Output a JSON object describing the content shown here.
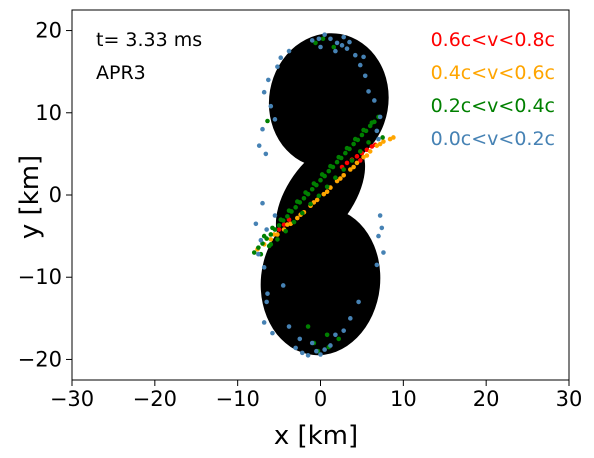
{
  "chart_data": {
    "type": "scatter",
    "annotations": {
      "time": "t= 3.33 ms",
      "eos": "APR3"
    },
    "xlabel": "x [km]",
    "ylabel": "y [km]",
    "xlim": [
      -30,
      30
    ],
    "ylim": [
      -22.5,
      22.5
    ],
    "x_ticks": [
      -30,
      -20,
      -10,
      0,
      10,
      20,
      30
    ],
    "x_tick_labels": [
      "−30",
      "−20",
      "−10",
      "0",
      "10",
      "20",
      "30"
    ],
    "y_ticks": [
      -20,
      -10,
      0,
      10,
      20
    ],
    "y_tick_labels": [
      "−20",
      "−10",
      "0",
      "10",
      "20"
    ],
    "grid": false,
    "legend_position": "top-right",
    "legend": [
      {
        "label": "0.6c<v<0.8c",
        "color": "#ff0000"
      },
      {
        "label": "0.4c<v<0.6c",
        "color": "#ffa500"
      },
      {
        "label": "0.2c<v<0.4c",
        "color": "#008000"
      },
      {
        "label": "0.0c<v<0.2c",
        "color": "#4682b4"
      }
    ],
    "body": {
      "color": "#000000",
      "upper_lobe": {
        "center": [
          1.0,
          11.5
        ],
        "semi_axis_x": 7.2,
        "semi_axis_y": 8.2,
        "rotation_deg": 10
      },
      "lower_lobe": {
        "center": [
          0.0,
          -10.5
        ],
        "semi_axis_x": 7.2,
        "semi_axis_y": 9.0,
        "rotation_deg": 6
      },
      "waist": {
        "center": [
          0.0,
          0.0
        ],
        "semi_axis_x": 4.0,
        "semi_axis_y": 7.5,
        "rotation_deg": 35
      }
    },
    "series": [
      {
        "name": "0.0c<v<0.2c",
        "color": "#4682b4",
        "x": [
          0.5,
          1.2,
          2.0,
          2.8,
          3.5,
          -0.2,
          -1.0,
          4.2,
          1.8,
          2.6,
          3.2,
          0.0,
          -6.3,
          -6.8,
          -5.2,
          -6.0,
          -5.5,
          -4.8,
          -3.8,
          -7.4,
          -7.0,
          -6.6,
          5.4,
          5.8,
          6.5,
          6.8,
          4.8,
          7.2,
          7.0,
          5.2,
          -7.2,
          -7.5,
          -6.8,
          -7.8,
          -6.5,
          -7.0,
          7.0,
          7.4,
          6.8,
          7.6,
          7.2,
          -6.5,
          -6.8,
          -5.8,
          -6.4,
          -3.0,
          -2.2,
          -1.5,
          -0.5,
          0.5,
          1.2,
          -1.0,
          0.0,
          -2.5,
          1.8,
          -3.8,
          3.6,
          4.6,
          2.8,
          -4.5,
          -5.5
        ],
        "y": [
          19.5,
          19.0,
          18.5,
          19.2,
          18.6,
          19.0,
          18.8,
          17.0,
          17.5,
          18.2,
          17.8,
          18.0,
          14.0,
          12.5,
          15.6,
          10.8,
          9.2,
          16.7,
          17.5,
          6.0,
          8.0,
          5.0,
          14.5,
          12.6,
          11.5,
          7.8,
          15.8,
          9.5,
          6.8,
          16.8,
          -5.5,
          -7.2,
          -8.8,
          -3.5,
          -4.2,
          -1.0,
          -5.0,
          -4.0,
          -8.5,
          -7.0,
          -2.5,
          -13.0,
          -15.5,
          -16.8,
          -12.0,
          -18.6,
          -19.2,
          -19.5,
          -19.0,
          -18.8,
          -18.3,
          -18.0,
          -19.4,
          -17.5,
          -17.0,
          -16.0,
          -15.0,
          -13.0,
          -16.5,
          -11.0,
          -2.5
        ]
      },
      {
        "name": "0.2c<v<0.4c",
        "color": "#008000",
        "x": [
          -8.0,
          -7.5,
          -7.0,
          -6.5,
          -6.0,
          -5.5,
          -5.0,
          -4.5,
          -4.0,
          -3.5,
          -3.0,
          -2.5,
          -2.0,
          -1.5,
          -1.0,
          -0.5,
          0.0,
          0.5,
          1.0,
          1.5,
          2.0,
          2.5,
          3.0,
          3.5,
          4.0,
          4.5,
          5.0,
          5.5,
          6.0,
          6.5,
          7.0,
          7.5,
          -6.8,
          -5.8,
          -4.8,
          -3.8,
          -2.8,
          -1.8,
          -0.8,
          0.2,
          1.2,
          2.2,
          3.2,
          4.2,
          5.2,
          6.2,
          -7.2,
          -6.2,
          -5.2,
          -4.2,
          -3.2,
          -2.2,
          -1.2,
          -0.2,
          0.8,
          1.8,
          2.8,
          3.8,
          4.8,
          5.8,
          0.3,
          1.6,
          -0.6,
          -0.3,
          1.0,
          2.2,
          -0.8,
          -1.5,
          0.8,
          -6.0,
          -6.4
        ],
        "y": [
          -7.0,
          -6.4,
          -5.9,
          -5.3,
          -4.8,
          -4.2,
          -3.7,
          -3.1,
          -2.6,
          -2.0,
          -1.5,
          -0.9,
          -0.4,
          0.1,
          0.7,
          1.2,
          1.8,
          2.3,
          2.9,
          3.4,
          4.0,
          4.5,
          5.1,
          5.6,
          6.2,
          6.7,
          7.3,
          7.8,
          8.4,
          8.9,
          9.5,
          7.0,
          -5.0,
          -4.0,
          -3.0,
          -1.9,
          -0.8,
          0.3,
          1.4,
          2.5,
          3.5,
          4.6,
          5.7,
          6.8,
          7.9,
          8.8,
          -7.2,
          -6.2,
          -5.4,
          -4.4,
          -3.3,
          -2.2,
          -1.1,
          -0.1,
          1.0,
          2.1,
          3.1,
          4.2,
          5.3,
          6.4,
          19.0,
          18.0,
          18.5,
          -19.0,
          -18.5,
          -17.5,
          -18.0,
          -16.0,
          -17.0,
          -6.0,
          9.0
        ]
      },
      {
        "name": "0.4c<v<0.6c",
        "color": "#ffa500",
        "x": [
          -7.6,
          -6.8,
          -6.0,
          -5.2,
          -4.4,
          -3.6,
          -2.8,
          -2.0,
          -1.2,
          -0.4,
          0.4,
          1.2,
          2.0,
          2.8,
          3.6,
          4.4,
          5.2,
          6.0,
          6.8,
          7.6,
          8.4,
          8.8,
          -5.6,
          -4.0,
          -2.4,
          -0.8,
          0.8,
          2.4,
          4.0,
          5.6,
          7.2
        ],
        "y": [
          -6.6,
          -6.0,
          -5.4,
          -4.8,
          -4.2,
          -3.5,
          -2.8,
          -2.1,
          -1.3,
          -0.6,
          0.1,
          0.9,
          1.7,
          2.4,
          3.1,
          3.9,
          4.6,
          5.3,
          6.0,
          6.5,
          6.8,
          7.0,
          -4.8,
          -3.6,
          -2.4,
          -0.9,
          0.4,
          2.0,
          3.4,
          4.8,
          6.2
        ]
      },
      {
        "name": "0.6c<v<0.8c",
        "color": "#ff0000",
        "x": [
          -5.0,
          -4.4,
          -3.8,
          2.6,
          3.2,
          3.8,
          4.4,
          5.0,
          5.6,
          6.2,
          6.6,
          4.8
        ],
        "y": [
          -4.2,
          -3.6,
          -3.0,
          3.4,
          3.9,
          4.3,
          4.7,
          5.1,
          5.5,
          5.9,
          6.1,
          4.2
        ]
      }
    ]
  }
}
